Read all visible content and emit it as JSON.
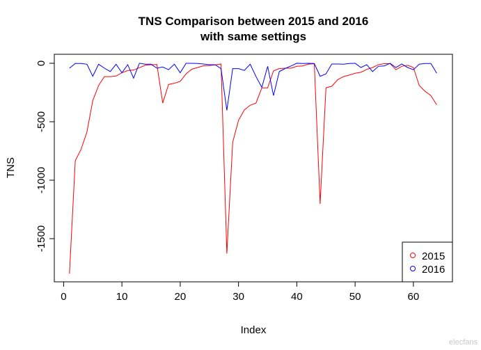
{
  "chart_data": {
    "type": "line",
    "title": "TNS Comparison between 2015 and 2016",
    "subtitle": "with same settings",
    "xlabel": "Index",
    "ylabel": "TNS",
    "xlim": [
      -1.6,
      66.7
    ],
    "ylim": [
      -1869,
      77
    ],
    "xticks": [
      0,
      10,
      20,
      30,
      40,
      50,
      60
    ],
    "yticks": [
      0,
      -500,
      -1000,
      -1500
    ],
    "grid": false,
    "legend_position": "bottom-right",
    "x": [
      1,
      2,
      3,
      4,
      5,
      6,
      7,
      8,
      9,
      10,
      11,
      12,
      13,
      14,
      15,
      16,
      17,
      18,
      19,
      20,
      21,
      22,
      23,
      24,
      25,
      26,
      27,
      28,
      29,
      30,
      31,
      32,
      33,
      34,
      35,
      36,
      37,
      38,
      39,
      40,
      41,
      42,
      43,
      44,
      45,
      46,
      47,
      48,
      49,
      50,
      51,
      52,
      53,
      54,
      55,
      56,
      57,
      58,
      59,
      60,
      61,
      62,
      63,
      64
    ],
    "series": [
      {
        "name": "2015",
        "color": "#ff0000",
        "values": [
          -1800,
          -833,
          -735,
          -587,
          -319,
          -190,
          -114,
          -114,
          -109,
          -81,
          -62,
          -58,
          -38,
          -17,
          -12,
          -10,
          -340,
          -181,
          -171,
          -155,
          -91,
          -50,
          -36,
          -21,
          -19,
          -14,
          -6,
          -1628,
          -676,
          -488,
          -399,
          -359,
          -340,
          -210,
          -210,
          -65,
          -45,
          -42,
          -42,
          -26,
          -23,
          -7,
          -4,
          -1202,
          -210,
          -196,
          -141,
          -114,
          -101,
          -85,
          -77,
          -52,
          -36,
          -12,
          -3,
          -3,
          -55,
          -26,
          -17,
          -36,
          -190,
          -240,
          -276,
          -355
        ]
      },
      {
        "name": "2016",
        "color": "#0000ff",
        "values": [
          -42,
          -2,
          -2,
          -8,
          -111,
          -8,
          -42,
          -71,
          -8,
          -81,
          -12,
          -127,
          0,
          -8,
          -8,
          -42,
          -32,
          -55,
          -8,
          -81,
          0,
          0,
          -2,
          -6,
          -12,
          -12,
          -46,
          -403,
          -46,
          -46,
          -61,
          -8,
          -113,
          -206,
          -26,
          -276,
          -71,
          -45,
          -23,
          0,
          -2,
          0,
          -2,
          -111,
          -91,
          -6,
          -6,
          -8,
          -2,
          0,
          -36,
          -12,
          -71,
          -26,
          -23,
          0,
          -36,
          -6,
          -36,
          -55,
          -8,
          -2,
          -2,
          -85
        ]
      }
    ]
  },
  "watermark": "电子发烧友 www.elecfans.com"
}
